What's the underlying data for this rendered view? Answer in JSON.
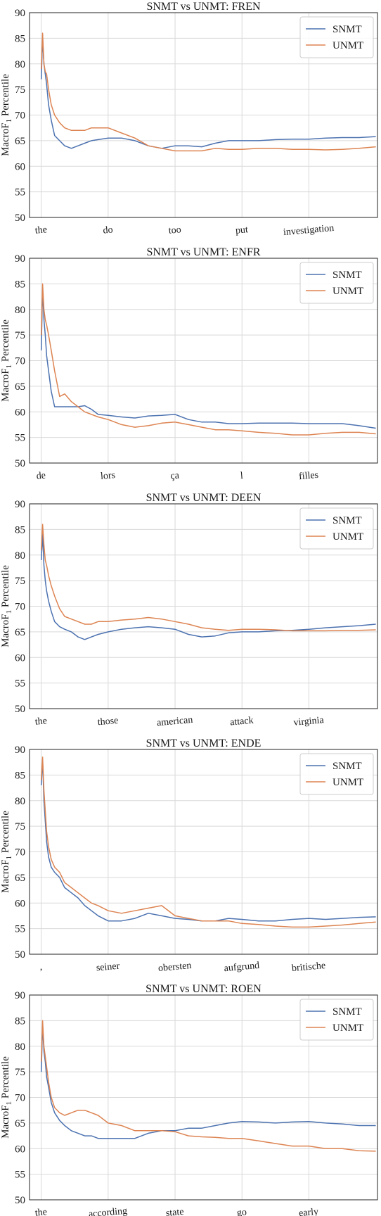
{
  "colors": {
    "snmt": "#4c72b0",
    "unmt": "#dd8452",
    "grid": "#d9d9d9",
    "frame": "#222222"
  },
  "chart_data": [
    {
      "type": "line",
      "title": "SNMT vs UNMT: FREN",
      "ylabel_main": "MacroF",
      "ylabel_sub": "1",
      "ylabel_tail": " Percentile",
      "ylim": [
        50,
        90
      ],
      "yticks": [
        "50",
        "55",
        "60",
        "65",
        "70",
        "75",
        "80",
        "85",
        "90"
      ],
      "x_tick_labels": [
        "the",
        "do",
        "too",
        "put",
        "investigation"
      ],
      "x_tick_positions": [
        0,
        200,
        400,
        600,
        800
      ],
      "xlim": [
        -35,
        1005
      ],
      "legend_position": "upper right",
      "series": [
        {
          "name": "SNMT",
          "color": "#4c72b0",
          "x": [
            0,
            4,
            8,
            12,
            16,
            22,
            30,
            40,
            55,
            70,
            90,
            110,
            130,
            150,
            170,
            200,
            240,
            280,
            320,
            360,
            400,
            440,
            480,
            520,
            560,
            600,
            650,
            700,
            750,
            800,
            850,
            900,
            950,
            1000
          ],
          "y": [
            77,
            85,
            80,
            78,
            76,
            72,
            69,
            66,
            65,
            64,
            63.5,
            64,
            64.5,
            65,
            65.2,
            65.5,
            65.5,
            65,
            64,
            63.5,
            64,
            64,
            63.8,
            64.5,
            65,
            65,
            65,
            65.2,
            65.3,
            65.3,
            65.5,
            65.6,
            65.6,
            65.8
          ]
        },
        {
          "name": "UNMT",
          "color": "#dd8452",
          "x": [
            0,
            4,
            8,
            12,
            16,
            22,
            30,
            40,
            55,
            70,
            90,
            110,
            130,
            150,
            170,
            200,
            240,
            280,
            320,
            360,
            400,
            440,
            480,
            520,
            560,
            600,
            650,
            700,
            750,
            800,
            850,
            900,
            950,
            1000
          ],
          "y": [
            79,
            86,
            80,
            78.5,
            78,
            75,
            72,
            70,
            68.5,
            67.5,
            67,
            67,
            67,
            67.5,
            67.5,
            67.5,
            66.5,
            65.5,
            64,
            63.5,
            63,
            63,
            63,
            63.5,
            63.3,
            63.3,
            63.5,
            63.5,
            63.3,
            63.3,
            63.2,
            63.3,
            63.5,
            63.8
          ]
        }
      ]
    },
    {
      "type": "line",
      "title": "SNMT vs UNMT: ENFR",
      "ylabel_main": "MacroF",
      "ylabel_sub": "1",
      "ylabel_tail": " Percentile",
      "ylim": [
        50,
        90
      ],
      "yticks": [
        "50",
        "55",
        "60",
        "65",
        "70",
        "75",
        "80",
        "85",
        "90"
      ],
      "x_tick_labels": [
        "de",
        "lors",
        "ça",
        "l",
        "filles"
      ],
      "x_tick_positions": [
        0,
        200,
        400,
        600,
        800
      ],
      "xlim": [
        -35,
        1005
      ],
      "legend_position": "upper right",
      "series": [
        {
          "name": "SNMT",
          "color": "#4c72b0",
          "x": [
            0,
            4,
            8,
            12,
            16,
            22,
            30,
            40,
            55,
            70,
            90,
            110,
            130,
            150,
            170,
            200,
            240,
            280,
            320,
            360,
            400,
            440,
            480,
            520,
            560,
            600,
            650,
            700,
            750,
            800,
            850,
            900,
            950,
            1000
          ],
          "y": [
            72,
            84,
            78,
            75,
            71,
            68,
            64,
            61,
            61,
            61,
            61,
            61,
            61.2,
            60.5,
            59.5,
            59.3,
            59,
            58.8,
            59.2,
            59.3,
            59.5,
            58.5,
            58,
            58,
            57.7,
            57.7,
            57.8,
            57.8,
            57.8,
            57.7,
            57.7,
            57.7,
            57.3,
            56.8
          ]
        },
        {
          "name": "UNMT",
          "color": "#dd8452",
          "x": [
            0,
            4,
            8,
            12,
            16,
            22,
            30,
            40,
            55,
            70,
            90,
            110,
            130,
            150,
            170,
            200,
            240,
            280,
            320,
            360,
            400,
            440,
            480,
            520,
            560,
            600,
            650,
            700,
            750,
            800,
            850,
            900,
            950,
            1000
          ],
          "y": [
            75,
            85,
            80,
            78,
            77,
            75,
            72,
            68,
            63,
            63.5,
            62,
            61,
            60,
            59.5,
            59,
            58.5,
            57.5,
            57,
            57.3,
            57.8,
            58,
            57.5,
            57,
            56.5,
            56.5,
            56.3,
            56,
            55.8,
            55.5,
            55.5,
            55.8,
            56,
            56,
            55.7
          ]
        }
      ]
    },
    {
      "type": "line",
      "title": "SNMT vs UNMT: DEEN",
      "ylabel_main": "MacroF",
      "ylabel_sub": "1",
      "ylabel_tail": " Percentile",
      "ylim": [
        50,
        90
      ],
      "yticks": [
        "50",
        "55",
        "60",
        "65",
        "70",
        "75",
        "80",
        "85",
        "90"
      ],
      "x_tick_labels": [
        "the",
        "those",
        "american",
        "attack",
        "virginia"
      ],
      "x_tick_positions": [
        0,
        200,
        400,
        600,
        800
      ],
      "xlim": [
        -35,
        1005
      ],
      "legend_position": "upper right",
      "series": [
        {
          "name": "SNMT",
          "color": "#4c72b0",
          "x": [
            0,
            4,
            8,
            12,
            16,
            22,
            30,
            40,
            55,
            70,
            90,
            110,
            130,
            150,
            170,
            200,
            240,
            280,
            320,
            360,
            400,
            440,
            480,
            520,
            560,
            600,
            650,
            700,
            750,
            800,
            850,
            900,
            950,
            1000
          ],
          "y": [
            79,
            84,
            78,
            75,
            73,
            71,
            69,
            67,
            66,
            65.5,
            65,
            64,
            63.5,
            64,
            64.5,
            65,
            65.5,
            65.8,
            66,
            65.8,
            65.5,
            64.5,
            64,
            64.2,
            64.8,
            65,
            65,
            65.2,
            65.3,
            65.5,
            65.8,
            66,
            66.2,
            66.5
          ]
        },
        {
          "name": "UNMT",
          "color": "#dd8452",
          "x": [
            0,
            4,
            8,
            12,
            16,
            22,
            30,
            40,
            55,
            70,
            90,
            110,
            130,
            150,
            170,
            200,
            240,
            280,
            320,
            360,
            400,
            440,
            480,
            520,
            560,
            600,
            650,
            700,
            750,
            800,
            850,
            900,
            950,
            1000
          ],
          "y": [
            81,
            86,
            82,
            79,
            78,
            76,
            74,
            72,
            69.5,
            68,
            67.5,
            67,
            66.5,
            66.5,
            67,
            67,
            67.3,
            67.5,
            67.8,
            67.5,
            67,
            66.5,
            65.8,
            65.5,
            65.3,
            65.5,
            65.5,
            65.4,
            65.2,
            65.2,
            65.2,
            65.3,
            65.3,
            65.4
          ]
        }
      ]
    },
    {
      "type": "line",
      "title": "SNMT vs UNMT: ENDE",
      "ylabel_main": "MacroF",
      "ylabel_sub": "1",
      "ylabel_tail": " Percentile",
      "ylim": [
        50,
        90
      ],
      "yticks": [
        "50",
        "55",
        "60",
        "65",
        "70",
        "75",
        "80",
        "85",
        "90"
      ],
      "x_tick_labels": [
        ",",
        "seiner",
        "obersten",
        "aufgrund",
        "britische"
      ],
      "x_tick_positions": [
        0,
        200,
        400,
        600,
        800
      ],
      "xlim": [
        -35,
        1005
      ],
      "legend_position": "upper right",
      "series": [
        {
          "name": "SNMT",
          "color": "#4c72b0",
          "x": [
            0,
            4,
            8,
            12,
            16,
            22,
            30,
            40,
            55,
            70,
            90,
            110,
            130,
            150,
            170,
            200,
            240,
            280,
            320,
            360,
            400,
            440,
            480,
            520,
            560,
            600,
            650,
            700,
            750,
            800,
            850,
            900,
            950,
            1000
          ],
          "y": [
            83,
            88,
            80,
            76,
            72,
            69,
            67,
            66,
            65,
            63,
            62,
            61,
            59.5,
            58.5,
            57.5,
            56.5,
            56.5,
            57,
            58,
            57.5,
            57,
            56.8,
            56.5,
            56.5,
            57,
            56.8,
            56.5,
            56.5,
            56.8,
            57,
            56.8,
            57,
            57.2,
            57.3
          ]
        },
        {
          "name": "UNMT",
          "color": "#dd8452",
          "x": [
            0,
            4,
            8,
            12,
            16,
            22,
            30,
            40,
            55,
            70,
            90,
            110,
            130,
            150,
            170,
            200,
            240,
            280,
            320,
            360,
            400,
            440,
            480,
            520,
            560,
            600,
            650,
            700,
            750,
            800,
            850,
            900,
            950,
            1000
          ],
          "y": [
            84,
            88.5,
            82,
            78,
            74,
            71,
            68.5,
            67,
            66,
            64,
            63,
            62,
            61,
            60,
            59.5,
            58.5,
            58,
            58.5,
            59,
            59.5,
            57.5,
            57,
            56.5,
            56.5,
            56.5,
            56,
            55.8,
            55.5,
            55.3,
            55.3,
            55.5,
            55.7,
            56,
            56.3
          ]
        }
      ]
    },
    {
      "type": "line",
      "title": "SNMT vs UNMT: ROEN",
      "ylabel_main": "MacroF",
      "ylabel_sub": "1",
      "ylabel_tail": " Percentile",
      "ylim": [
        50,
        90
      ],
      "yticks": [
        "50",
        "55",
        "60",
        "65",
        "70",
        "75",
        "80",
        "85",
        "90"
      ],
      "x_tick_labels": [
        "the",
        "according",
        "state",
        "go",
        "early"
      ],
      "x_tick_positions": [
        0,
        200,
        400,
        600,
        800
      ],
      "xlim": [
        -35,
        1005
      ],
      "legend_position": "upper right",
      "series": [
        {
          "name": "SNMT",
          "color": "#4c72b0",
          "x": [
            0,
            4,
            8,
            12,
            16,
            22,
            30,
            40,
            55,
            70,
            90,
            110,
            130,
            150,
            170,
            200,
            240,
            280,
            320,
            360,
            400,
            440,
            480,
            520,
            560,
            600,
            650,
            700,
            750,
            800,
            850,
            900,
            950,
            1000
          ],
          "y": [
            75,
            84,
            79,
            77,
            74,
            72,
            69,
            67,
            65.5,
            64.5,
            63.5,
            63,
            62.5,
            62.5,
            62,
            62,
            62,
            62,
            63,
            63.5,
            63.5,
            64,
            64,
            64.5,
            65,
            65.3,
            65.2,
            65,
            65.2,
            65.3,
            65,
            64.8,
            64.5,
            64.5
          ]
        },
        {
          "name": "UNMT",
          "color": "#dd8452",
          "x": [
            0,
            4,
            8,
            12,
            16,
            22,
            30,
            40,
            55,
            70,
            90,
            110,
            130,
            150,
            170,
            200,
            240,
            280,
            320,
            360,
            400,
            440,
            480,
            520,
            560,
            600,
            650,
            700,
            750,
            800,
            850,
            900,
            950,
            1000
          ],
          "y": [
            77,
            85,
            80,
            78,
            76,
            73,
            70,
            68,
            67,
            66.5,
            67,
            67.5,
            67.5,
            67,
            66.5,
            65,
            64.5,
            63.5,
            63.5,
            63.5,
            63.3,
            62.5,
            62.3,
            62.2,
            62,
            62,
            61.5,
            61,
            60.5,
            60.5,
            60,
            60,
            59.6,
            59.5
          ]
        }
      ]
    }
  ]
}
